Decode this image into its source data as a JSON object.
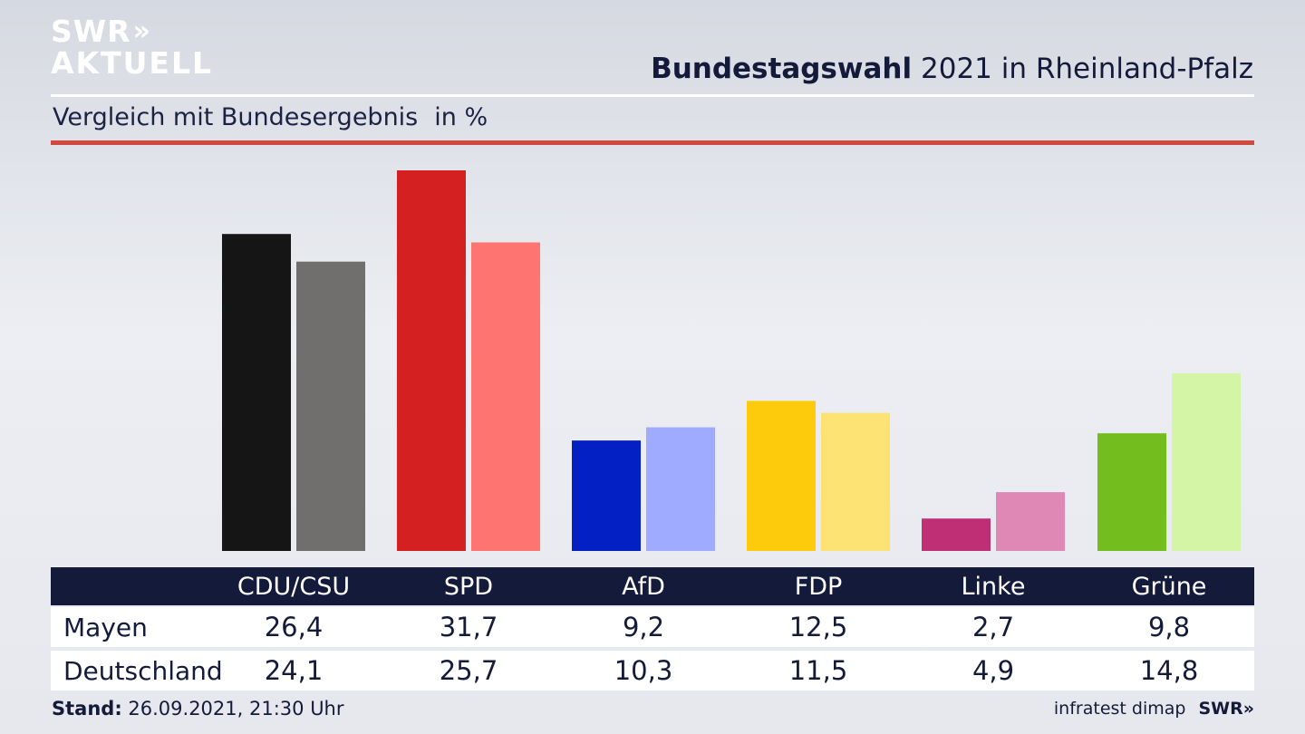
{
  "brand": {
    "line1": "SWR",
    "line2": "AKTUELL",
    "chevrons": "»"
  },
  "header": {
    "title_bold": "Bundestagswahl",
    "title_rest": "2021 in Rheinland-Pfalz"
  },
  "subtitle": {
    "text": "Vergleich mit Bundesergebnis",
    "unit": "in %"
  },
  "colors": {
    "navy": "#141a3a",
    "accent_rule": "#cf4a3d"
  },
  "chart_data": {
    "type": "bar",
    "title": "Bundestagswahl 2021 in Rheinland-Pfalz",
    "subtitle": "Vergleich mit Bundesergebnis",
    "unit": "in %",
    "categories": [
      "CDU/CSU",
      "SPD",
      "AfD",
      "FDP",
      "Linke",
      "Grüne"
    ],
    "series": [
      {
        "name": "Mayen",
        "values": [
          "26,4",
          "31,7",
          "9,2",
          "12,5",
          "2,7",
          "9,8"
        ],
        "colors": [
          "#151515",
          "#d52021",
          "#0320c4",
          "#fdca0c",
          "#be2f76",
          "#74bd1f"
        ]
      },
      {
        "name": "Deutschland",
        "values": [
          "24,1",
          "25,7",
          "10,3",
          "11,5",
          "4,9",
          "14,8"
        ],
        "colors": [
          "#716f6d",
          "#fd7470",
          "#9eabff",
          "#fde274",
          "#df88b6",
          "#d3f5a5"
        ]
      }
    ],
    "ylim": [
      0,
      31.7
    ],
    "grid": false,
    "legend": "table-below"
  },
  "footer": {
    "stand_label": "Stand:",
    "stand_value": "26.09.2021, 21:30 Uhr",
    "source": "infratest dimap",
    "logo": "SWR»"
  }
}
